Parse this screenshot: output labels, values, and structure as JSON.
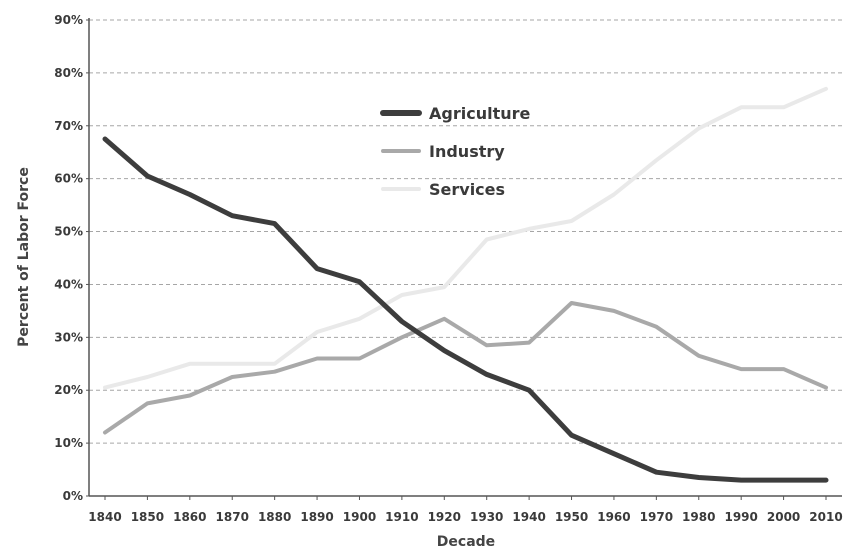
{
  "chart_data": {
    "type": "line",
    "title": "",
    "xlabel": "Decade",
    "ylabel": "Percent of Labor Force",
    "x": [
      1840,
      1850,
      1860,
      1870,
      1880,
      1890,
      1900,
      1910,
      1920,
      1930,
      1940,
      1950,
      1960,
      1970,
      1980,
      1990,
      2000,
      2010
    ],
    "x_tick_labels": [
      "1840",
      "1850",
      "1860",
      "1870",
      "1880",
      "1890",
      "1900",
      "1910",
      "1920",
      "1930",
      "1940",
      "1950",
      "1960",
      "1970",
      "1980",
      "1990",
      "2000",
      "2010"
    ],
    "y_tick_labels": [
      "0%",
      "10%",
      "20%",
      "30%",
      "40%",
      "50%",
      "60%",
      "70%",
      "80%",
      "90%"
    ],
    "ylim": [
      0,
      90
    ],
    "y_ticks": [
      0,
      10,
      20,
      30,
      40,
      50,
      60,
      70,
      80,
      90
    ],
    "grid": true,
    "legend_position": "top-center",
    "series": [
      {
        "name": "Agriculture",
        "color": "#3d3d3d",
        "values": [
          67.5,
          60.5,
          57,
          53,
          51.5,
          43,
          40.5,
          33,
          27.5,
          23,
          20,
          11.5,
          8,
          4.5,
          3.5,
          3,
          3,
          3
        ]
      },
      {
        "name": "Industry",
        "color": "#a9a9a9",
        "values": [
          12,
          17.5,
          19,
          22.5,
          23.5,
          26,
          26,
          30,
          33.5,
          28.5,
          29,
          36.5,
          35,
          32,
          26.5,
          24,
          24,
          20.5
        ]
      },
      {
        "name": "Services",
        "color": "#e9e9e9",
        "values": [
          20.5,
          22.5,
          25,
          25,
          25,
          31,
          33.5,
          38,
          39.5,
          48.5,
          50.5,
          52,
          57,
          63.5,
          69.5,
          73.5,
          73.5,
          77
        ]
      }
    ]
  }
}
